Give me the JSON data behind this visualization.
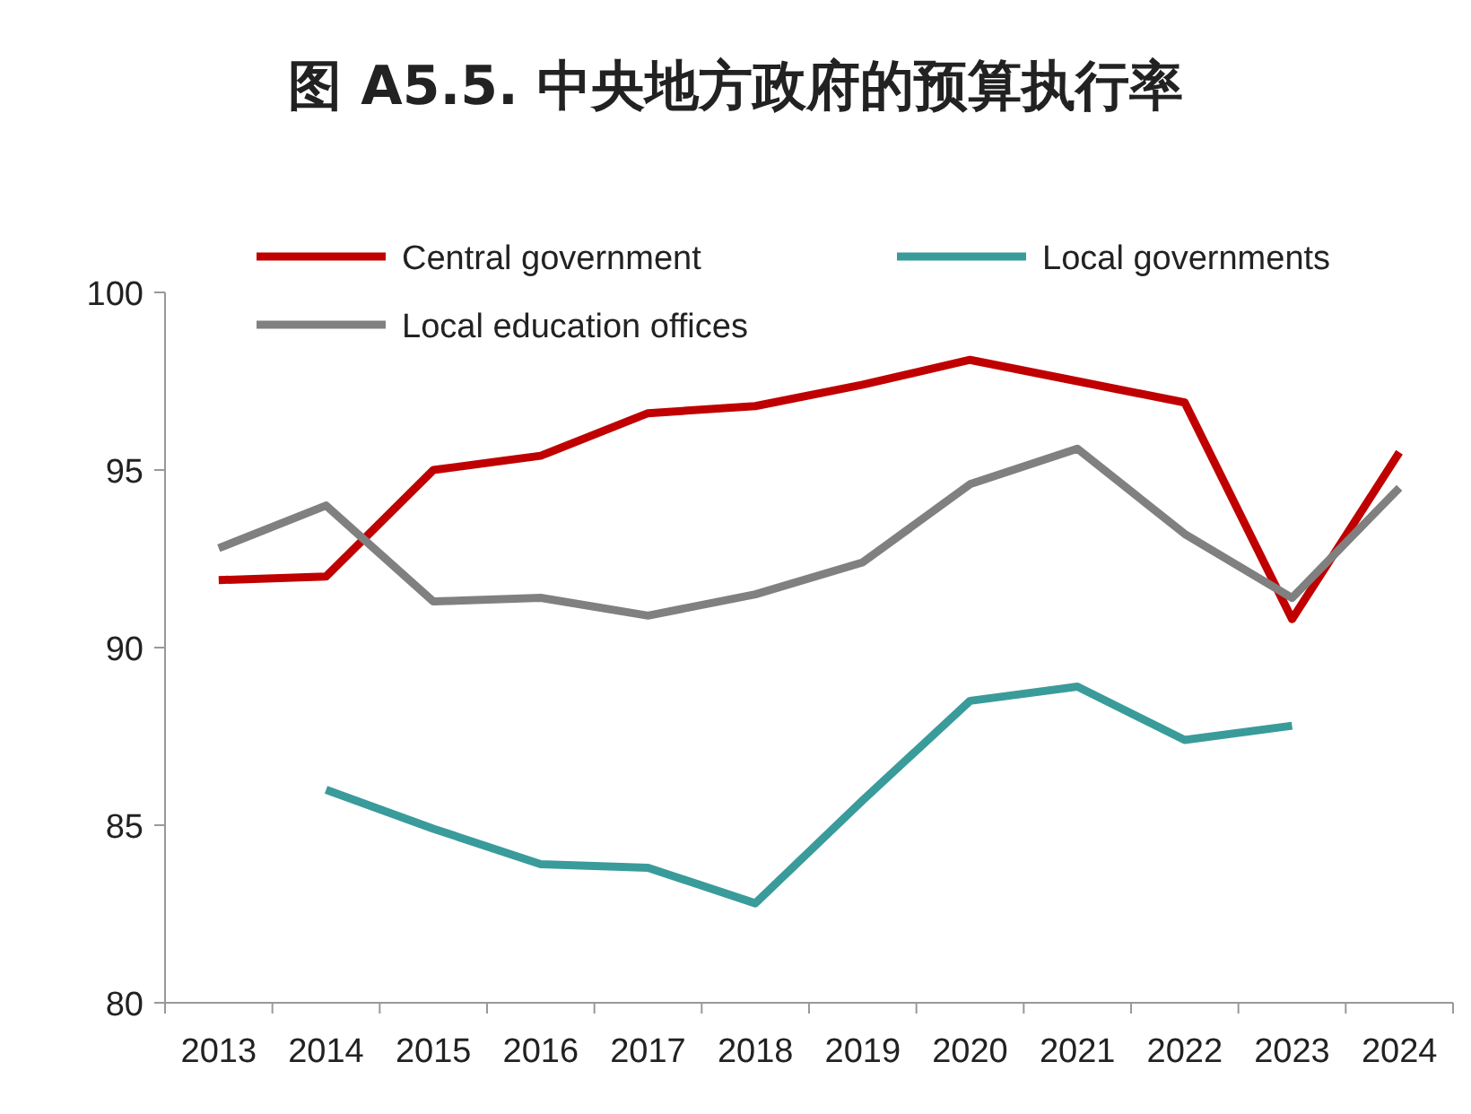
{
  "chart_data": {
    "type": "line",
    "title": "图 A5.5. 中央地方政府的预算执行率",
    "categories": [
      "2013",
      "2014",
      "2015",
      "2016",
      "2017",
      "2018",
      "2019",
      "2020",
      "2021",
      "2022",
      "2023",
      "2024"
    ],
    "ylim": [
      80,
      100
    ],
    "yticks": [
      80,
      85,
      90,
      95,
      100
    ],
    "grid": false,
    "legend": "top",
    "marker": "none",
    "line_style": "solid",
    "series": [
      {
        "name": "Central government",
        "color": "#c00000",
        "values": [
          91.9,
          92.0,
          95.0,
          95.4,
          96.6,
          96.8,
          97.4,
          98.1,
          97.5,
          96.9,
          90.8,
          95.5
        ]
      },
      {
        "name": "Local governments",
        "color": "#3a9b9b",
        "values": [
          null,
          86.0,
          84.9,
          83.9,
          83.8,
          82.8,
          85.7,
          88.5,
          88.9,
          87.4,
          87.8,
          null
        ]
      },
      {
        "name": "Local education offices",
        "color": "#808080",
        "values": [
          92.8,
          94.0,
          91.3,
          91.4,
          90.9,
          91.5,
          92.4,
          94.6,
          95.6,
          93.2,
          91.4,
          94.5
        ]
      }
    ]
  }
}
